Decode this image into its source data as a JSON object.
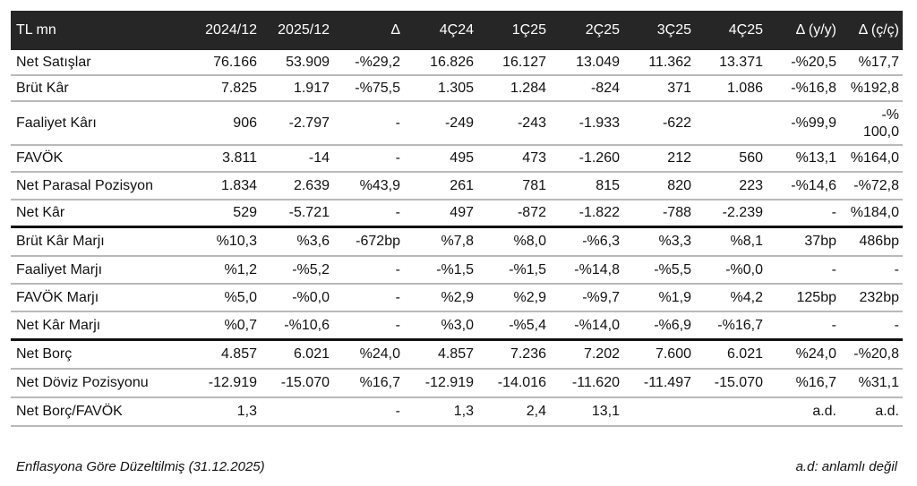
{
  "table": {
    "headers": [
      "TL mn",
      "2024/12",
      "2025/12",
      "Δ",
      "4Ç24",
      "1Ç25",
      "2Ç25",
      "3Ç25",
      "4Ç25",
      "Δ (y/y)",
      "Δ (ç/ç)"
    ],
    "rows": [
      [
        "Net Satışlar",
        "76.166",
        "53.909",
        "-%29,2",
        "16.826",
        "16.127",
        "13.049",
        "11.362",
        "13.371",
        "-%20,5",
        "%17,7"
      ],
      [
        "Brüt Kâr",
        "7.825",
        "1.917",
        "-%75,5",
        "1.305",
        "1.284",
        "-824",
        "371",
        "1.086",
        "-%16,8",
        "%192,8"
      ],
      [
        "Faaliyet Kârı",
        "906",
        "-2.797",
        "-",
        "-249",
        "-243",
        "-1.933",
        "-622",
        "",
        "-%99,9",
        "-% 100,0"
      ],
      [
        "FAVÖK",
        "3.811",
        "-14",
        "-",
        "495",
        "473",
        "-1.260",
        "212",
        "560",
        "%13,1",
        "%164,0"
      ],
      [
        "Net Parasal Pozisyon",
        "1.834",
        "2.639",
        "%43,9",
        "261",
        "781",
        "815",
        "820",
        "223",
        "-%14,6",
        "-%72,8"
      ],
      [
        "Net Kâr",
        "529",
        "-5.721",
        "-",
        "497",
        "-872",
        "-1.822",
        "-788",
        "-2.239",
        "-",
        "%184,0"
      ],
      [
        "Brüt Kâr Marjı",
        "%10,3",
        "%3,6",
        "-672bp",
        "%7,8",
        "%8,0",
        "-%6,3",
        "%3,3",
        "%8,1",
        "37bp",
        "486bp"
      ],
      [
        "Faaliyet Marjı",
        "%1,2",
        "-%5,2",
        "-",
        "-%1,5",
        "-%1,5",
        "-%14,8",
        "-%5,5",
        "-%0,0",
        "-",
        "-"
      ],
      [
        "FAVÖK Marjı",
        "%5,0",
        "-%0,0",
        "-",
        "%2,9",
        "%2,9",
        "-%9,7",
        "%1,9",
        "%4,2",
        "125bp",
        "232bp"
      ],
      [
        "Net Kâr Marjı",
        "%0,7",
        "-%10,6",
        "-",
        "%3,0",
        "-%5,4",
        "-%14,0",
        "-%6,9",
        "-%16,7",
        "-",
        "-"
      ],
      [
        "Net Borç",
        "4.857",
        "6.021",
        "%24,0",
        "4.857",
        "7.236",
        "7.202",
        "7.600",
        "6.021",
        "%24,0",
        "-%20,8"
      ],
      [
        "Net Döviz Pozisyonu",
        "-12.919",
        "-15.070",
        "%16,7",
        "-12.919",
        "-14.016",
        "-11.620",
        "-11.497",
        "-15.070",
        "%16,7",
        "%31,1"
      ],
      [
        "Net Borç/FAVÖK",
        "1,3",
        "",
        "-",
        "1,3",
        "2,4",
        "13,1",
        "",
        "",
        "a.d.",
        "a.d."
      ]
    ]
  },
  "footer": {
    "note_left": "Enflasyona Göre Düzeltilmiş (31.12.2025)",
    "note_right": "a.d: anlamlı değil"
  }
}
